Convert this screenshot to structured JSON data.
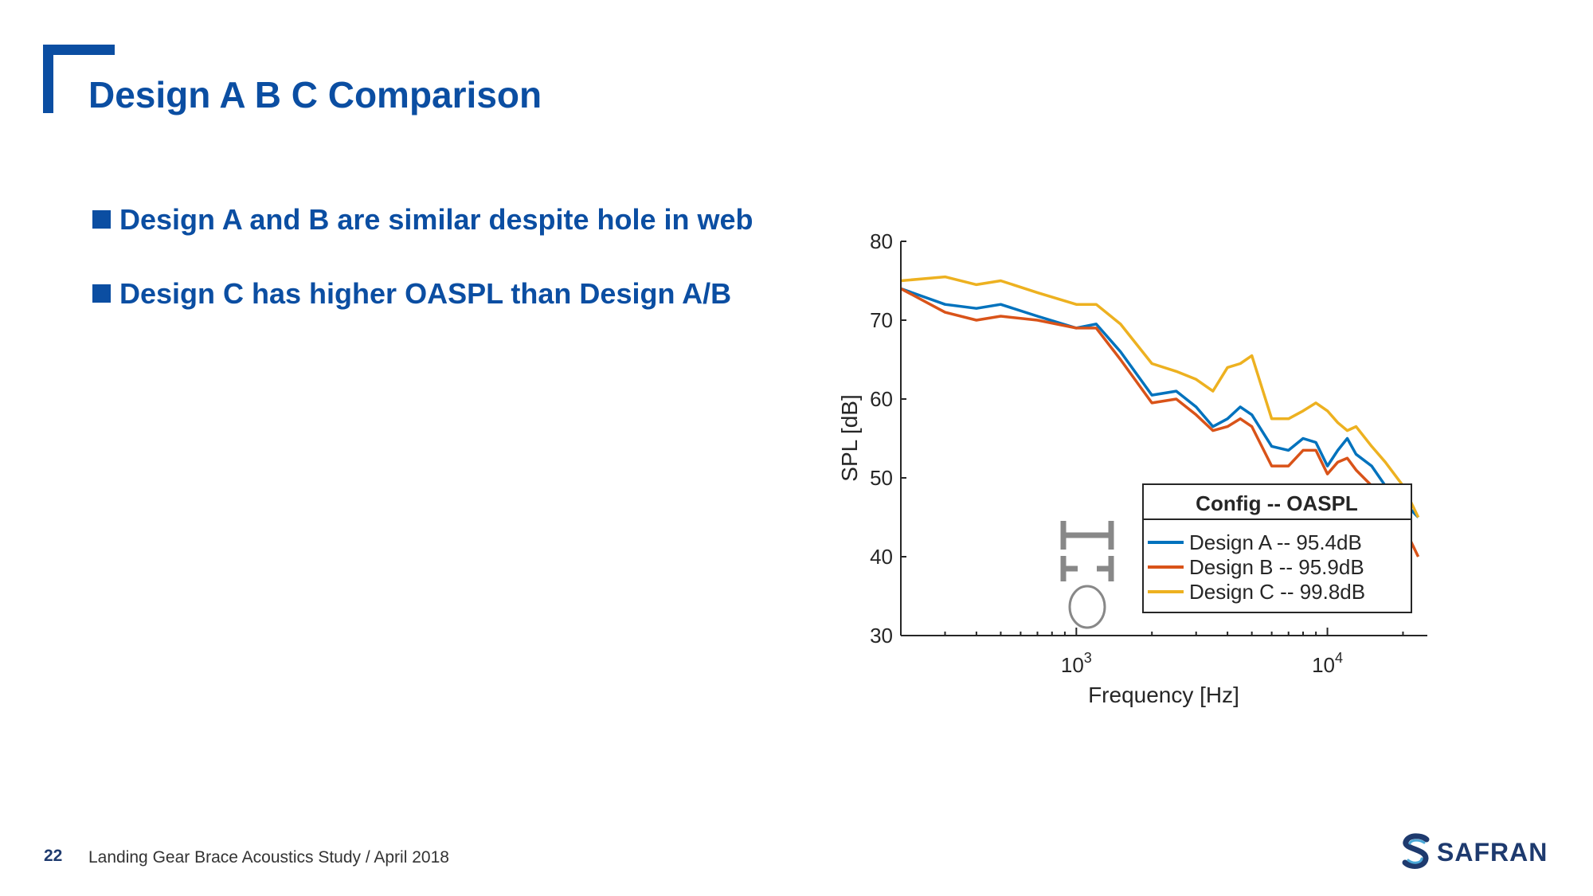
{
  "slide": {
    "title": "Design A B C Comparison",
    "accent_color": "#0b4ea2",
    "bullets": [
      "Design A and B are similar despite hole in web",
      "Design C has higher OASPL than Design A/B"
    ]
  },
  "footer": {
    "page_number": "22",
    "text": "Landing Gear Brace Acoustics Study / April 2018",
    "logo_text": "SAFRAN"
  },
  "chart_data": {
    "type": "line",
    "title": "",
    "xlabel": "Frequency [Hz]",
    "ylabel": "SPL [dB]",
    "xscale": "log",
    "xlim": [
      200,
      25000
    ],
    "ylim": [
      30,
      80
    ],
    "yticks": [
      30,
      40,
      50,
      60,
      70,
      80
    ],
    "xticks": [
      {
        "value": 1000,
        "base": "10",
        "exp": "3"
      },
      {
        "value": 10000,
        "base": "10",
        "exp": "4"
      }
    ],
    "grid": false,
    "legend": {
      "title": "Config -- OASPL",
      "position": "bottom-right"
    },
    "x": [
      200,
      300,
      400,
      500,
      700,
      1000,
      1200,
      1500,
      2000,
      2500,
      3000,
      3500,
      4000,
      4500,
      5000,
      6000,
      7000,
      8000,
      9000,
      10000,
      11000,
      12000,
      13000,
      15000,
      17000,
      20000,
      23000
    ],
    "series": [
      {
        "name": "Design A -- 95.4dB",
        "color": "#0072bd",
        "values": [
          74,
          72,
          71.5,
          72,
          70.5,
          69,
          69.5,
          66,
          60.5,
          61,
          59,
          56.5,
          57.5,
          59,
          58,
          54,
          53.5,
          55,
          54.5,
          51.5,
          53.5,
          55,
          53,
          51.5,
          49,
          47,
          45
        ]
      },
      {
        "name": "Design B -- 95.9dB",
        "color": "#d95319",
        "values": [
          74,
          71,
          70,
          70.5,
          70,
          69,
          69,
          65,
          59.5,
          60,
          58,
          56,
          56.5,
          57.5,
          56.5,
          51.5,
          51.5,
          53.5,
          53.5,
          50.5,
          52,
          52.5,
          51,
          49,
          47.5,
          44,
          40
        ]
      },
      {
        "name": "Design C -- 99.8dB",
        "color": "#edb120",
        "values": [
          75,
          75.5,
          74.5,
          75,
          73.5,
          72,
          72,
          69.5,
          64.5,
          63.5,
          62.5,
          61,
          64,
          64.5,
          65.5,
          57.5,
          57.5,
          58.5,
          59.5,
          58.5,
          57,
          56,
          56.5,
          54,
          52,
          49,
          45
        ]
      }
    ]
  }
}
